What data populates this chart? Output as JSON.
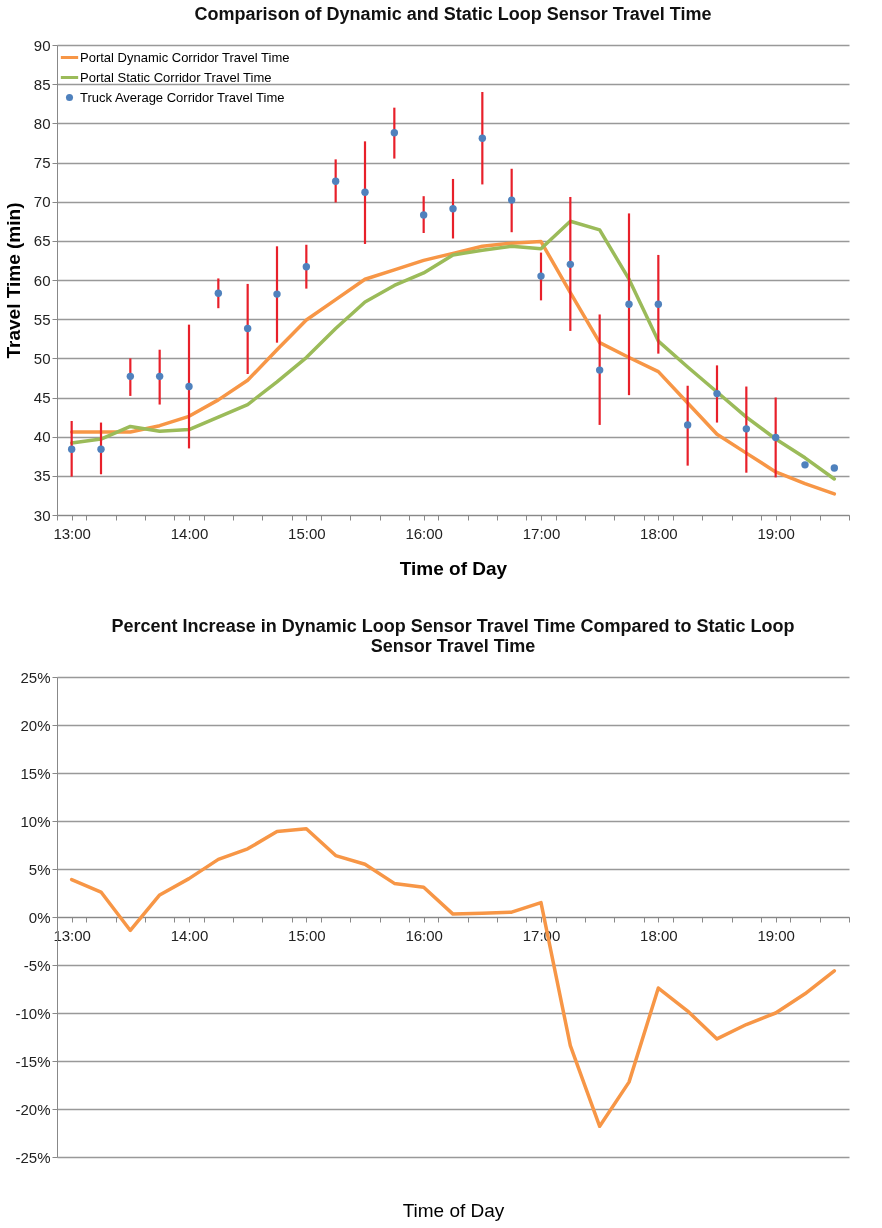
{
  "chart_data": [
    {
      "type": "line",
      "title": "Comparison of Dynamic and Static Loop Sensor Travel Time",
      "xlabel": "Time of Day",
      "ylabel": "Travel Time (min)",
      "x": [
        13,
        13.25,
        13.5,
        13.75,
        14,
        14.25,
        14.5,
        14.75,
        15,
        15.25,
        15.5,
        15.75,
        16,
        16.25,
        16.5,
        16.75,
        17,
        17.25,
        17.5,
        17.75,
        18,
        18.25,
        18.5,
        18.75,
        19,
        19.25,
        19.5
      ],
      "series": [
        {
          "name": "Portal Dynamic Corridor Travel Time",
          "type": "line",
          "color": "#f79646",
          "values": [
            40.6,
            40.6,
            40.6,
            41.4,
            42.6,
            44.7,
            47.2,
            51.1,
            54.9,
            57.5,
            60.1,
            61.3,
            62.5,
            63.4,
            64.3,
            64.7,
            64.9,
            58.4,
            52.0,
            50.1,
            48.3,
            44.3,
            40.3,
            37.9,
            35.5,
            34.0,
            32.7
          ]
        },
        {
          "name": "Portal Static Corridor Travel Time",
          "color": "#9bbb59",
          "values": [
            39.2,
            39.7,
            41.3,
            40.7,
            40.9,
            42.5,
            44.1,
            47.0,
            50.1,
            53.8,
            57.2,
            59.3,
            60.9,
            63.2,
            63.8,
            64.3,
            64.0,
            67.5,
            66.4,
            60.1,
            52.2,
            48.9,
            45.7,
            42.5,
            39.7,
            37.3,
            34.6
          ]
        },
        {
          "name": "Truck Average Corridor Travel Time",
          "type": "scatter",
          "marker": "circle",
          "color": "#4f81bd",
          "values": [
            38.4,
            38.4,
            47.7,
            47.7,
            46.4,
            58.3,
            53.8,
            58.2,
            61.7,
            72.6,
            71.2,
            78.8,
            68.3,
            69.1,
            78.1,
            70.2,
            60.5,
            62.0,
            48.5,
            56.9,
            56.9,
            41.5,
            45.5,
            41.0,
            39.9,
            36.4,
            36.0
          ],
          "errors": [
            [
              34.9,
              42.0
            ],
            [
              35.2,
              41.8
            ],
            [
              45.2,
              50.0
            ],
            [
              44.1,
              51.1
            ],
            [
              38.5,
              54.3
            ],
            [
              56.4,
              60.2
            ],
            [
              48.0,
              59.5
            ],
            [
              52.0,
              64.3
            ],
            [
              58.9,
              64.5
            ],
            [
              69.9,
              75.4
            ],
            [
              64.6,
              77.7
            ],
            [
              75.5,
              82.0
            ],
            [
              66.0,
              70.7
            ],
            [
              65.3,
              72.9
            ],
            [
              72.2,
              84.0
            ],
            [
              66.1,
              74.2
            ],
            [
              57.4,
              63.5
            ],
            [
              53.5,
              70.6
            ],
            [
              41.5,
              55.6
            ],
            [
              45.3,
              68.5
            ],
            [
              50.6,
              63.2
            ],
            [
              36.3,
              46.5
            ],
            [
              41.8,
              49.1
            ],
            [
              35.4,
              46.4
            ],
            [
              34.8,
              45.0
            ],
            null,
            null
          ]
        }
      ],
      "xlim": [
        12.875,
        19.625
      ],
      "xticks": [
        {
          "value": 12.875,
          "label": null
        },
        {
          "value": 13,
          "label": "13:00"
        },
        {
          "value": 13.125,
          "label": null
        },
        {
          "value": 13.375,
          "label": null
        },
        {
          "value": 13.625,
          "label": null
        },
        {
          "value": 13.875,
          "label": null
        },
        {
          "value": 14,
          "label": "14:00"
        },
        {
          "value": 14.125,
          "label": null
        },
        {
          "value": 14.375,
          "label": null
        },
        {
          "value": 14.625,
          "label": null
        },
        {
          "value": 14.875,
          "label": null
        },
        {
          "value": 15,
          "label": "15:00"
        },
        {
          "value": 15.125,
          "label": null
        },
        {
          "value": 15.375,
          "label": null
        },
        {
          "value": 15.625,
          "label": null
        },
        {
          "value": 15.875,
          "label": null
        },
        {
          "value": 16,
          "label": "16:00"
        },
        {
          "value": 16.125,
          "label": null
        },
        {
          "value": 16.375,
          "label": null
        },
        {
          "value": 16.625,
          "label": null
        },
        {
          "value": 16.875,
          "label": null
        },
        {
          "value": 17,
          "label": "17:00"
        },
        {
          "value": 17.125,
          "label": null
        },
        {
          "value": 17.375,
          "label": null
        },
        {
          "value": 17.625,
          "label": null
        },
        {
          "value": 17.875,
          "label": null
        },
        {
          "value": 18,
          "label": "18:00"
        },
        {
          "value": 18.125,
          "label": null
        },
        {
          "value": 18.375,
          "label": null
        },
        {
          "value": 18.625,
          "label": null
        },
        {
          "value": 18.875,
          "label": null
        },
        {
          "value": 19,
          "label": "19:00"
        },
        {
          "value": 19.125,
          "label": null
        },
        {
          "value": 19.375,
          "label": null
        },
        {
          "value": 19.625,
          "label": null
        }
      ],
      "ylim": [
        30,
        90
      ],
      "yticks": [
        30,
        35,
        40,
        45,
        50,
        55,
        60,
        65,
        70,
        75,
        80,
        85,
        90
      ],
      "grid": "y",
      "legend": "top left"
    },
    {
      "type": "line",
      "title": "Percent Increase in Dynamic Loop Sensor Travel Time Compared to Static Loop Sensor Travel Time",
      "xlabel": "Time of Day",
      "x": [
        13,
        13.25,
        13.5,
        13.75,
        14,
        14.25,
        14.5,
        14.75,
        15,
        15.25,
        15.5,
        15.75,
        16,
        16.25,
        16.5,
        16.75,
        17,
        17.25,
        17.5,
        17.75,
        18,
        18.25,
        18.5,
        18.75,
        19,
        19.25,
        19.5
      ],
      "series": [
        {
          "color": "#f79646",
          "values": [
            3.9,
            2.6,
            -1.4,
            2.3,
            4.0,
            6.0,
            7.1,
            8.9,
            9.2,
            6.4,
            5.5,
            3.5,
            3.1,
            0.3,
            0.4,
            0.5,
            1.5,
            -13.4,
            -21.8,
            -17.2,
            -7.4,
            -9.8,
            -12.7,
            -11.2,
            -10.0,
            -8.0,
            -5.6
          ]
        }
      ],
      "xlim": [
        12.875,
        19.625
      ],
      "xticks": [
        {
          "value": 12.875,
          "label": null
        },
        {
          "value": 13,
          "label": "13:00"
        },
        {
          "value": 13.125,
          "label": null
        },
        {
          "value": 13.375,
          "label": null
        },
        {
          "value": 13.625,
          "label": null
        },
        {
          "value": 13.875,
          "label": null
        },
        {
          "value": 14,
          "label": "14:00"
        },
        {
          "value": 14.125,
          "label": null
        },
        {
          "value": 14.375,
          "label": null
        },
        {
          "value": 14.625,
          "label": null
        },
        {
          "value": 14.875,
          "label": null
        },
        {
          "value": 15,
          "label": "15:00"
        },
        {
          "value": 15.125,
          "label": null
        },
        {
          "value": 15.375,
          "label": null
        },
        {
          "value": 15.625,
          "label": null
        },
        {
          "value": 15.875,
          "label": null
        },
        {
          "value": 16,
          "label": "16:00"
        },
        {
          "value": 16.125,
          "label": null
        },
        {
          "value": 16.375,
          "label": null
        },
        {
          "value": 16.625,
          "label": null
        },
        {
          "value": 16.875,
          "label": null
        },
        {
          "value": 17,
          "label": "17:00"
        },
        {
          "value": 17.125,
          "label": null
        },
        {
          "value": 17.375,
          "label": null
        },
        {
          "value": 17.625,
          "label": null
        },
        {
          "value": 17.875,
          "label": null
        },
        {
          "value": 18,
          "label": "18:00"
        },
        {
          "value": 18.125,
          "label": null
        },
        {
          "value": 18.375,
          "label": null
        },
        {
          "value": 18.625,
          "label": null
        },
        {
          "value": 18.875,
          "label": null
        },
        {
          "value": 19,
          "label": "19:00"
        },
        {
          "value": 19.125,
          "label": null
        },
        {
          "value": 19.375,
          "label": null
        },
        {
          "value": 19.625,
          "label": null
        }
      ],
      "ylim": [
        -25,
        25
      ],
      "yticks": [
        {
          "value": -25,
          "label": "-25%"
        },
        {
          "value": -20,
          "label": "-20%"
        },
        {
          "value": -15,
          "label": "-15%"
        },
        {
          "value": -10,
          "label": "-10%"
        },
        {
          "value": -5,
          "label": "-5%"
        },
        {
          "value": 0,
          "label": "0%"
        },
        {
          "value": 5,
          "label": "5%"
        },
        {
          "value": 10,
          "label": "10%"
        },
        {
          "value": 15,
          "label": "15%"
        },
        {
          "value": 20,
          "label": "20%"
        },
        {
          "value": 25,
          "label": "25%"
        }
      ],
      "grid": "y"
    }
  ]
}
